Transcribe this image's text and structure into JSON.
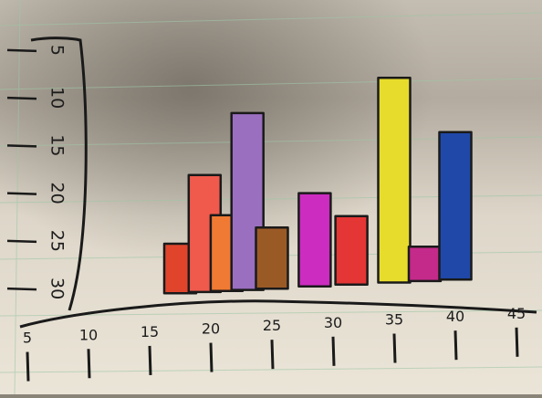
{
  "chart_data": {
    "type": "bar",
    "title": "",
    "xlabel": "",
    "ylabel": "",
    "x_ticks": [
      "5",
      "10",
      "15",
      "20",
      "25",
      "30",
      "35",
      "40",
      "45"
    ],
    "y_ticks": [
      "5",
      "10",
      "15",
      "20",
      "25",
      "30"
    ],
    "y_axis_inverted": true,
    "ylim": [
      3,
      30
    ],
    "bars": [
      {
        "x": 17.5,
        "top": 25.3,
        "color": "#e0452c"
      },
      {
        "x": 19.5,
        "top": 18.1,
        "color": "#ef5a4c"
      },
      {
        "x": 21.3,
        "top": 22.3,
        "color": "#f07a34"
      },
      {
        "x": 23.0,
        "top": 11.6,
        "color": "#9b6fc0"
      },
      {
        "x": 25.0,
        "top": 23.6,
        "color": "#9a5a26"
      },
      {
        "x": 28.5,
        "top": 20.0,
        "color": "#cc2cc0"
      },
      {
        "x": 31.5,
        "top": 22.4,
        "color": "#e43634"
      },
      {
        "x": 35.0,
        "top": 7.9,
        "color": "#e7dc2c"
      },
      {
        "x": 37.5,
        "top": 25.6,
        "color": "#c42a8a"
      },
      {
        "x": 40.0,
        "top": 13.6,
        "color": "#1f48a8"
      }
    ],
    "grid": false,
    "legend": "none"
  }
}
